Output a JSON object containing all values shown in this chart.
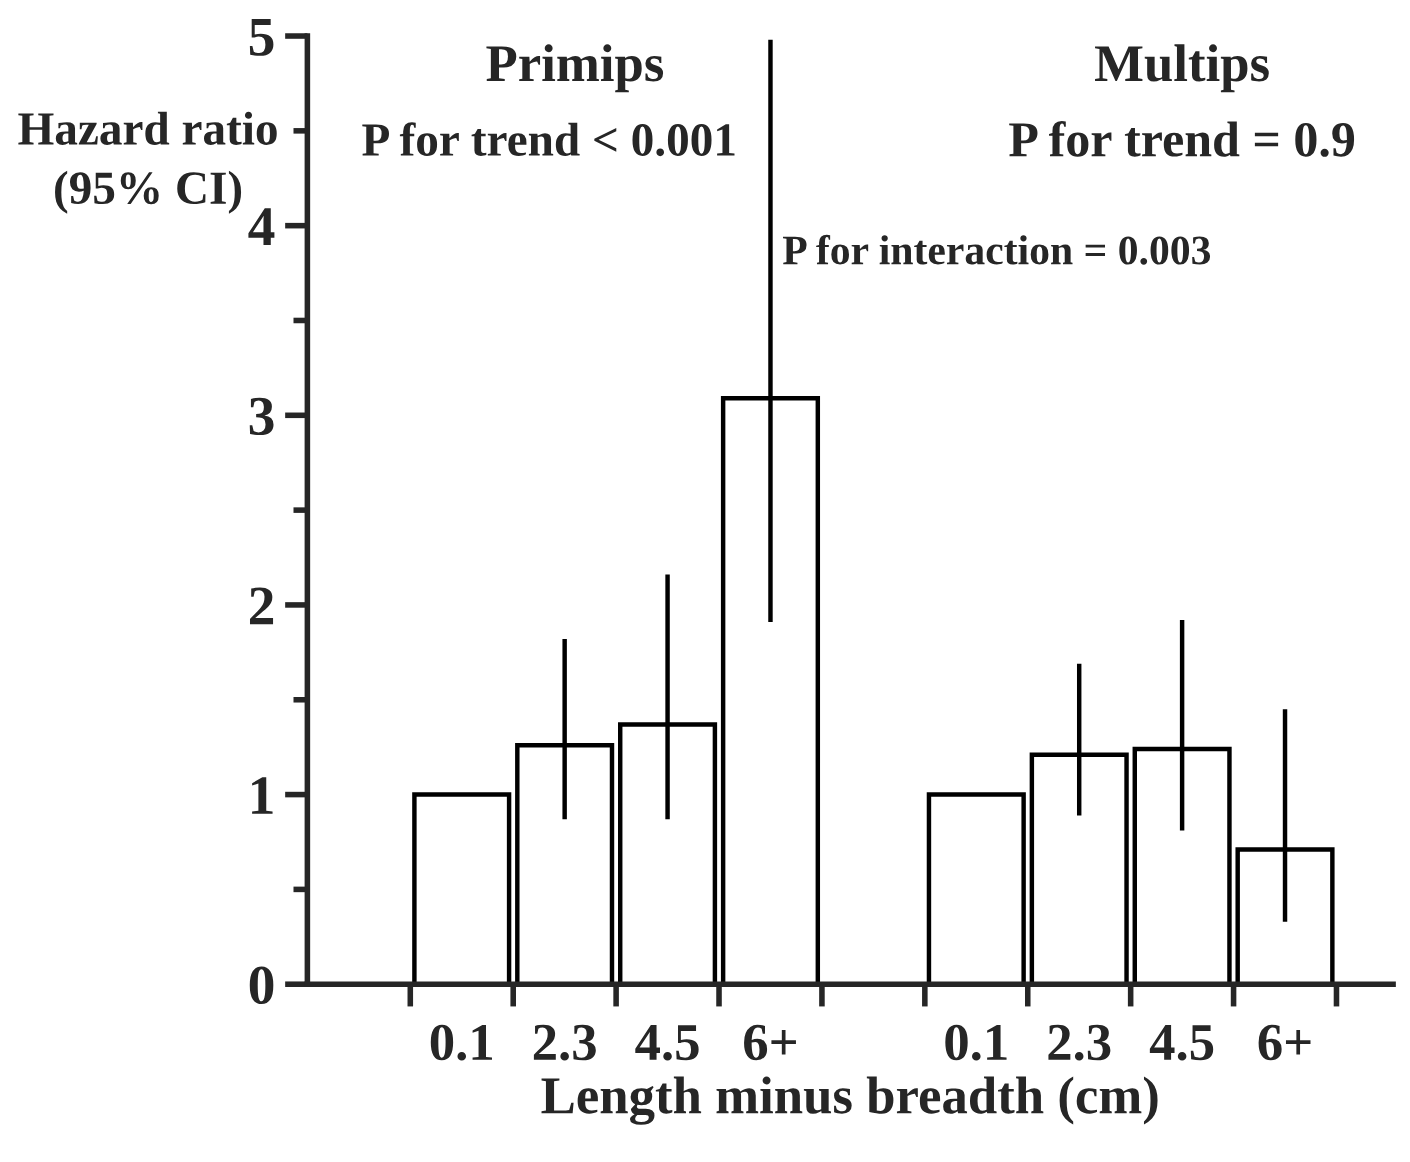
{
  "chart_data": {
    "type": "bar",
    "categories": [
      "0.1",
      "2.3",
      "4.5",
      "6+",
      null,
      "0.1",
      "2.3",
      "4.5",
      "6+"
    ],
    "values": [
      1.0,
      1.26,
      1.37,
      3.09,
      null,
      1.0,
      1.21,
      1.24,
      0.71
    ],
    "errors": [
      null,
      [
        0.87,
        1.82
      ],
      [
        0.87,
        2.16
      ],
      [
        1.91,
        4.98
      ],
      null,
      null,
      [
        0.89,
        1.69
      ],
      [
        0.81,
        1.92
      ],
      [
        0.33,
        1.45
      ]
    ],
    "color": "#ffffff",
    "xlabel": "Length minus breadth (cm)",
    "ylabel": "Hazard ratio\n(95% CI)",
    "ylim": [
      0,
      5
    ],
    "yticks": [
      0,
      1,
      2,
      3,
      4,
      5
    ],
    "annotations": [
      "Primips",
      "P for trend < 0.001",
      "Multips",
      "P for trend = 0.9",
      "P for interaction = 0.003"
    ],
    "grid": false,
    "legend": false
  }
}
